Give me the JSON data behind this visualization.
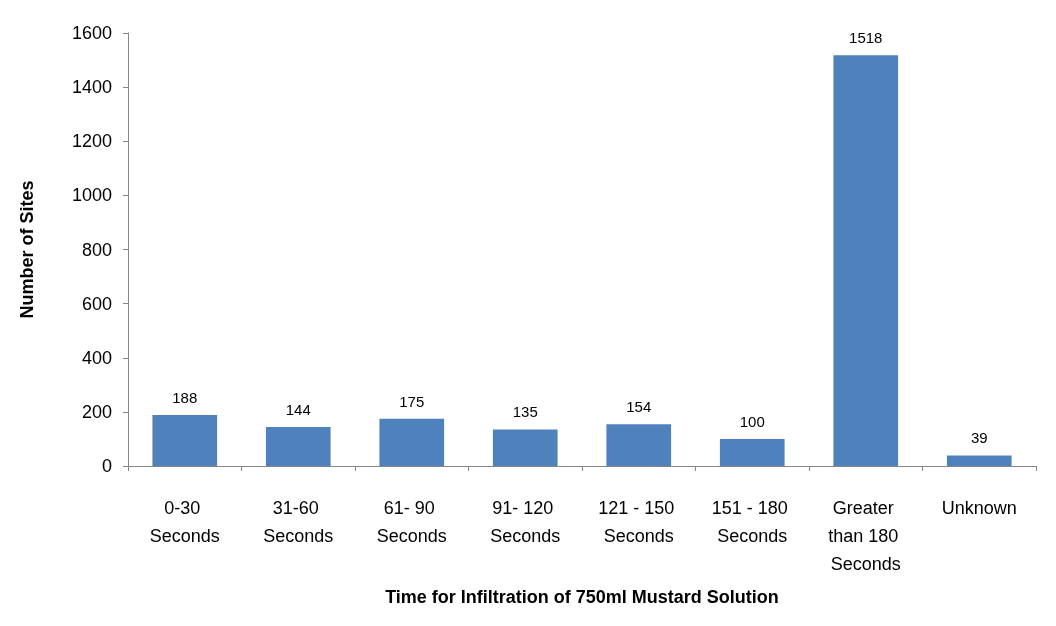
{
  "chart_data": {
    "type": "bar",
    "xlabel": "Time for Infiltration of 750ml Mustard Solution",
    "ylabel": "Number of Sites",
    "categories": [
      "0-30 Seconds",
      "31-60 Seconds",
      "61- 90 Seconds",
      "91- 120 Seconds",
      "121 - 150 Seconds",
      "151 - 180 Seconds",
      "Greater than 180 Seconds",
      "Unknown"
    ],
    "values": [
      188,
      144,
      175,
      135,
      154,
      100,
      1518,
      39
    ],
    "color": "#4f81bd",
    "ylim": [
      0,
      1600
    ],
    "yticks": [
      0,
      200,
      400,
      600,
      800,
      1000,
      1200,
      1400,
      1600
    ],
    "grid": false,
    "data_labels": true
  }
}
